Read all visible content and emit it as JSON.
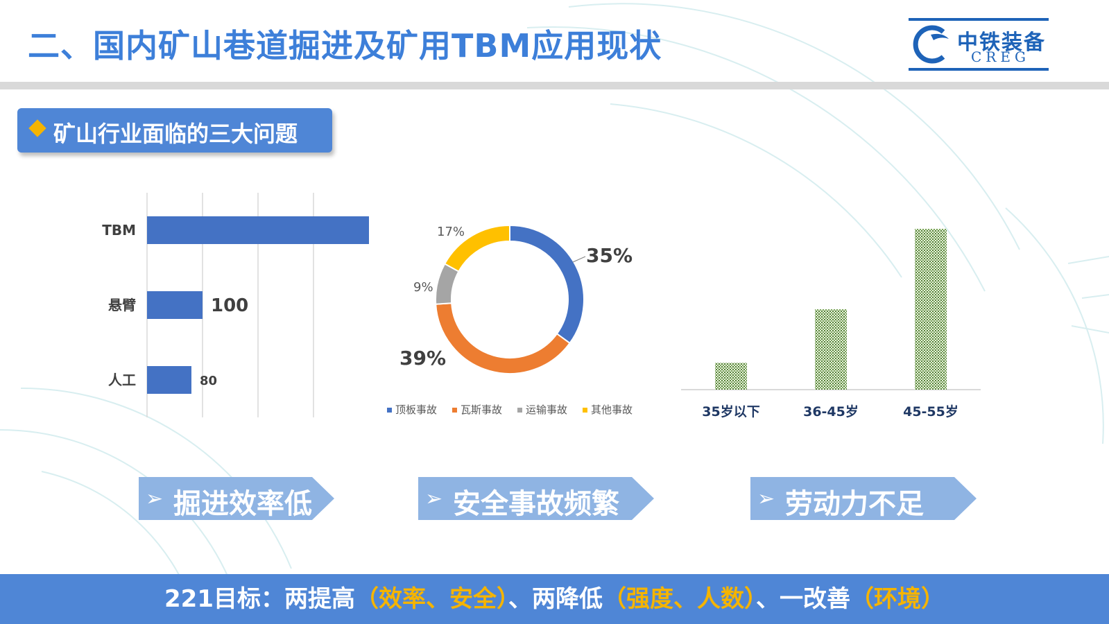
{
  "header": {
    "title": "二、国内矿山巷道掘进及矿用TBM应用现状",
    "logo_cn": "中铁装备",
    "logo_en": "CREG"
  },
  "section": {
    "label": "矿山行业面临的三大问题"
  },
  "colors": {
    "primary": "#4472c4",
    "orange": "#ed7d31",
    "gray": "#a5a5a5",
    "gold": "#ffc000",
    "green": "#548235"
  },
  "chart_data": [
    {
      "type": "bar",
      "orientation": "horizontal",
      "categories": [
        "TBM",
        "悬臂",
        "人工"
      ],
      "values": [
        400,
        100,
        80
      ],
      "data_labels": [
        "",
        "100",
        "80"
      ],
      "xlim": [
        0,
        400
      ],
      "grid": true
    },
    {
      "type": "pie",
      "variant": "donut",
      "labels": [
        "顶板事故",
        "瓦斯事故",
        "运输事故",
        "其他事故"
      ],
      "values": [
        35,
        39,
        9,
        17
      ],
      "data_labels": [
        "35%",
        "39%",
        "9%",
        "17%"
      ],
      "legend": "bottom"
    },
    {
      "type": "bar",
      "categories": [
        "35岁以下",
        "36-45岁",
        "45-55岁"
      ],
      "values": [
        1,
        3,
        6
      ],
      "ylim": [
        0,
        6
      ],
      "grid": false
    }
  ],
  "banners": [
    {
      "arrow": "➢",
      "label": "掘进效率低"
    },
    {
      "arrow": "➢",
      "label": "安全事故频繁"
    },
    {
      "arrow": "➢",
      "label": "劳动力不足"
    }
  ],
  "footer": {
    "p1": "221目标：两提高",
    "h1": "（效率、安全）",
    "p2": "、两降低",
    "h2": "（强度、人数）",
    "p3": "、一改善",
    "h3": "（环境）"
  }
}
